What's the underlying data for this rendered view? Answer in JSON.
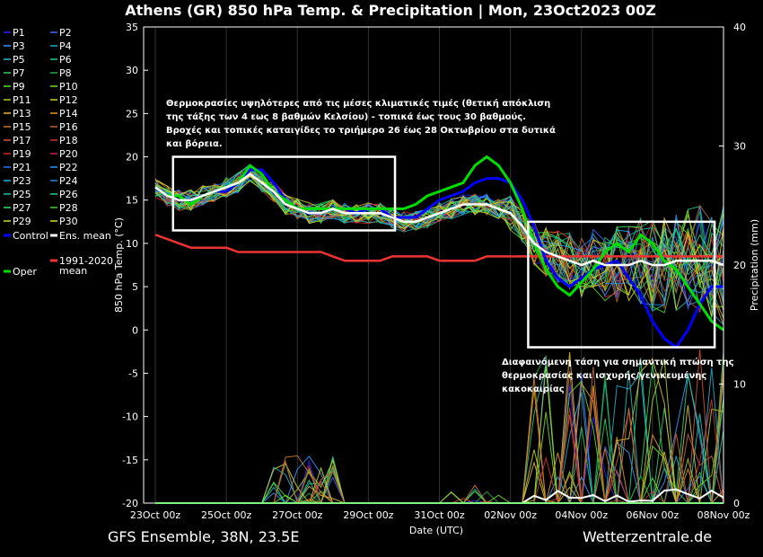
{
  "chart_data": {
    "type": "line",
    "title": "Athens  (GR)  850 hPa Temp. & Precipitation | Mon, 23Oct2023 00Z",
    "xlabel": "Date (UTC)",
    "ylabel": "850 hPa Temp. (°C)",
    "y2label": "Precipitation (mm)",
    "ylim": [
      -20,
      35
    ],
    "y2lim": [
      0,
      40
    ],
    "yticks": [
      "35",
      "30",
      "25",
      "20",
      "15",
      "10",
      "5",
      "0",
      "-5",
      "-10",
      "-15",
      "-20"
    ],
    "y2ticks": [
      "40",
      "30",
      "20",
      "10",
      "0"
    ],
    "xticks": [
      "23Oct 00z",
      "25Oct 00z",
      "27Oct 00z",
      "29Oct 00z",
      "31Oct 00z",
      "02Nov 00z",
      "04Nov 00z",
      "06Nov 00z",
      "08Nov 00z"
    ],
    "xrange_days": 16,
    "step_hours": 6,
    "legend": [
      {
        "label": "P1",
        "color": "#2222ff"
      },
      {
        "label": "P2",
        "color": "#4466ff"
      },
      {
        "label": "P3",
        "color": "#3399ff"
      },
      {
        "label": "P4",
        "color": "#22aacc"
      },
      {
        "label": "P5",
        "color": "#22bbbb"
      },
      {
        "label": "P6",
        "color": "#22cc88"
      },
      {
        "label": "P7",
        "color": "#33cc55"
      },
      {
        "label": "P8",
        "color": "#22aa44"
      },
      {
        "label": "P9",
        "color": "#55dd22"
      },
      {
        "label": "P10",
        "color": "#77dd22"
      },
      {
        "label": "P11",
        "color": "#aacc22"
      },
      {
        "label": "P12",
        "color": "#cccc33"
      },
      {
        "label": "P13",
        "color": "#ddbb33"
      },
      {
        "label": "P14",
        "color": "#dd9922"
      },
      {
        "label": "P15",
        "color": "#cc7733"
      },
      {
        "label": "P16",
        "color": "#bb6644"
      },
      {
        "label": "P17",
        "color": "#cc5533"
      },
      {
        "label": "P18",
        "color": "#cc3333"
      },
      {
        "label": "P19",
        "color": "#dd2222"
      },
      {
        "label": "P20",
        "color": "#cc2255"
      },
      {
        "label": "P21",
        "color": "#3366ff"
      },
      {
        "label": "P22",
        "color": "#2299ff"
      },
      {
        "label": "P23",
        "color": "#22aaee"
      },
      {
        "label": "P24",
        "color": "#2288dd"
      },
      {
        "label": "P25",
        "color": "#22bbaa"
      },
      {
        "label": "P26",
        "color": "#22cc99"
      },
      {
        "label": "P27",
        "color": "#33dd66"
      },
      {
        "label": "P28",
        "color": "#44cc33"
      },
      {
        "label": "P29",
        "color": "#ccdd22"
      },
      {
        "label": "P30",
        "color": "#dddd22"
      },
      {
        "label": "Control",
        "color": "#0000ff"
      },
      {
        "label": "Ens. mean",
        "color": "#ffffff"
      },
      {
        "label": "Oper",
        "color": "#00dd00"
      },
      {
        "label": "1991-2020 mean",
        "color": "#ee3333"
      }
    ],
    "series": {
      "control": [
        [
          0,
          16.5
        ],
        [
          1,
          15.5
        ],
        [
          2,
          15
        ],
        [
          3,
          15
        ],
        [
          4,
          15.5
        ],
        [
          5,
          16
        ],
        [
          6,
          16
        ],
        [
          7,
          17
        ],
        [
          8,
          18.5
        ],
        [
          9,
          18.5
        ],
        [
          10,
          17
        ],
        [
          11,
          15
        ],
        [
          12,
          14
        ],
        [
          13,
          13.5
        ],
        [
          14,
          13.5
        ],
        [
          15,
          14
        ],
        [
          16,
          14
        ],
        [
          17,
          13.5
        ],
        [
          18,
          14
        ],
        [
          19,
          14
        ],
        [
          20,
          13
        ],
        [
          21,
          13
        ],
        [
          22,
          13
        ],
        [
          23,
          14
        ],
        [
          24,
          15
        ],
        [
          25,
          15.5
        ],
        [
          26,
          16
        ],
        [
          27,
          17
        ],
        [
          28,
          17.5
        ],
        [
          29,
          17.5
        ],
        [
          30,
          17
        ],
        [
          31,
          15
        ],
        [
          32,
          12
        ],
        [
          33,
          8
        ],
        [
          34,
          6
        ],
        [
          35,
          5
        ],
        [
          36,
          6
        ],
        [
          37,
          7
        ],
        [
          38,
          7.5
        ],
        [
          39,
          8
        ],
        [
          40,
          6
        ],
        [
          41,
          4
        ],
        [
          42,
          1
        ],
        [
          43,
          -1
        ],
        [
          44,
          -2
        ],
        [
          45,
          0
        ],
        [
          46,
          3
        ],
        [
          47,
          5
        ],
        [
          48,
          5
        ]
      ],
      "mean": [
        [
          0,
          16.5
        ],
        [
          1,
          15.5
        ],
        [
          2,
          15
        ],
        [
          3,
          15
        ],
        [
          4,
          15.5
        ],
        [
          5,
          16
        ],
        [
          6,
          16.5
        ],
        [
          7,
          17
        ],
        [
          8,
          18
        ],
        [
          9,
          17
        ],
        [
          10,
          16
        ],
        [
          11,
          14.5
        ],
        [
          12,
          14
        ],
        [
          13,
          13.5
        ],
        [
          14,
          13.5
        ],
        [
          15,
          14
        ],
        [
          16,
          13.5
        ],
        [
          17,
          13.5
        ],
        [
          18,
          13.5
        ],
        [
          19,
          13.5
        ],
        [
          20,
          13
        ],
        [
          21,
          12.5
        ],
        [
          22,
          12.5
        ],
        [
          23,
          13
        ],
        [
          24,
          13.5
        ],
        [
          25,
          14
        ],
        [
          26,
          14.5
        ],
        [
          27,
          14.5
        ],
        [
          28,
          14.5
        ],
        [
          29,
          14
        ],
        [
          30,
          13.5
        ],
        [
          31,
          12
        ],
        [
          32,
          10
        ],
        [
          33,
          9
        ],
        [
          34,
          8.5
        ],
        [
          35,
          8
        ],
        [
          36,
          7.5
        ],
        [
          37,
          8
        ],
        [
          38,
          7.5
        ],
        [
          39,
          7.5
        ],
        [
          40,
          7.5
        ],
        [
          41,
          8
        ],
        [
          42,
          7.5
        ],
        [
          43,
          7.5
        ],
        [
          44,
          8
        ],
        [
          45,
          8
        ],
        [
          46,
          8
        ],
        [
          47,
          8
        ],
        [
          48,
          7.5
        ]
      ],
      "oper": [
        [
          0,
          16.5
        ],
        [
          1,
          15.5
        ],
        [
          2,
          15.5
        ],
        [
          3,
          14.5
        ],
        [
          4,
          15.5
        ],
        [
          5,
          16
        ],
        [
          6,
          16.5
        ],
        [
          7,
          17
        ],
        [
          8,
          19
        ],
        [
          9,
          18
        ],
        [
          10,
          16
        ],
        [
          11,
          15
        ],
        [
          12,
          14
        ],
        [
          13,
          14
        ],
        [
          14,
          14
        ],
        [
          15,
          14
        ],
        [
          16,
          14
        ],
        [
          17,
          14
        ],
        [
          18,
          14
        ],
        [
          19,
          14
        ],
        [
          20,
          14
        ],
        [
          21,
          14
        ],
        [
          22,
          14.5
        ],
        [
          23,
          15.5
        ],
        [
          24,
          16
        ],
        [
          25,
          16.5
        ],
        [
          26,
          17
        ],
        [
          27,
          19
        ],
        [
          28,
          20
        ],
        [
          29,
          19
        ],
        [
          30,
          17
        ],
        [
          31,
          14
        ],
        [
          32,
          10
        ],
        [
          33,
          7
        ],
        [
          34,
          5
        ],
        [
          35,
          4
        ],
        [
          36,
          5.5
        ],
        [
          37,
          7
        ],
        [
          38,
          9
        ],
        [
          39,
          10
        ],
        [
          40,
          9
        ],
        [
          41,
          11
        ],
        [
          42,
          10
        ],
        [
          43,
          8
        ],
        [
          44,
          7
        ],
        [
          45,
          5
        ],
        [
          46,
          3
        ],
        [
          47,
          1
        ],
        [
          48,
          0
        ]
      ],
      "climate": [
        [
          0,
          11
        ],
        [
          1,
          10.5
        ],
        [
          2,
          10
        ],
        [
          3,
          9.5
        ],
        [
          4,
          9.5
        ],
        [
          5,
          9.5
        ],
        [
          6,
          9.5
        ],
        [
          7,
          9
        ],
        [
          8,
          9
        ],
        [
          9,
          9
        ],
        [
          10,
          9
        ],
        [
          11,
          9
        ],
        [
          12,
          9
        ],
        [
          13,
          9
        ],
        [
          14,
          9
        ],
        [
          15,
          8.5
        ],
        [
          16,
          8
        ],
        [
          17,
          8
        ],
        [
          18,
          8
        ],
        [
          19,
          8
        ],
        [
          20,
          8.5
        ],
        [
          21,
          8.5
        ],
        [
          22,
          8.5
        ],
        [
          23,
          8.5
        ],
        [
          24,
          8
        ],
        [
          25,
          8
        ],
        [
          26,
          8
        ],
        [
          27,
          8
        ],
        [
          28,
          8.5
        ],
        [
          29,
          8.5
        ],
        [
          30,
          8.5
        ],
        [
          31,
          8.5
        ],
        [
          32,
          8.5
        ],
        [
          33,
          8.5
        ],
        [
          34,
          8.5
        ],
        [
          35,
          8.5
        ],
        [
          36,
          8.5
        ],
        [
          37,
          8.5
        ],
        [
          38,
          8.5
        ],
        [
          39,
          8.5
        ],
        [
          40,
          8.5
        ],
        [
          41,
          8.5
        ],
        [
          42,
          8.5
        ],
        [
          43,
          8.5
        ],
        [
          44,
          8.5
        ],
        [
          45,
          8.5
        ],
        [
          46,
          8.5
        ],
        [
          47,
          8.5
        ],
        [
          48,
          8.5
        ]
      ]
    },
    "annotations": {
      "top": [
        "Θερμοκρασίες υψηλότερες από τις μέσες κλιματικές τιμές (θετική απόκλιση",
        "της τάξης των 4 εως 8 βαθμών Κελσίου) - τοπικά έως τους 30 βαθμούς.",
        "Βροχές και τοπικές καταιγίδες το τριήμερο 26 έως 28 Οκτωβρίου στα δυτικά",
        "και βόρεια."
      ],
      "bottom": [
        "Διαφαινόμενη τάση για σημαντική πτώση της",
        "θερμοκρασίας και ισχυρής/γενικευμένης",
        "κακοκαιρίας"
      ]
    },
    "boxes": [
      {
        "from_day": 0.5,
        "to_day": 6.75,
        "top": 20,
        "bottom": 11.5
      },
      {
        "from_day": 10.5,
        "to_day": 15.75,
        "top": 12.5,
        "bottom": -2
      }
    ]
  },
  "footer": {
    "left": "GFS Ensemble, 38N, 23.5E",
    "right": "Wetterzentrale.de"
  }
}
